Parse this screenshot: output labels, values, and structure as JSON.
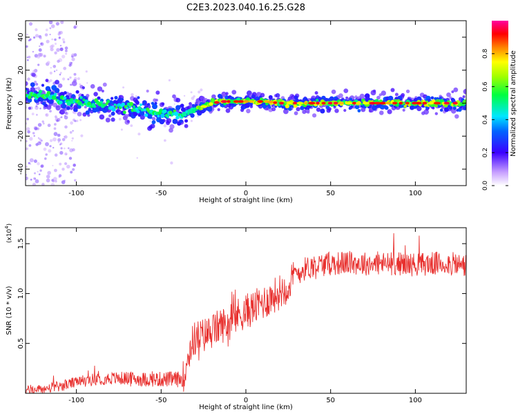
{
  "title": "C2E3.2023.040.16.25.G28",
  "chart_data": [
    {
      "type": "heatmap",
      "xlabel": "Height of straight line (km)",
      "ylabel": "Frequency (Hz)",
      "xlim": [
        -130,
        130
      ],
      "ylim": [
        -50,
        50
      ],
      "xticks": [
        -100,
        -50,
        0,
        50,
        100
      ],
      "yticks": [
        -40,
        -20,
        0,
        20,
        40
      ],
      "colorbar": {
        "label": "Normalized spectral amplitude",
        "ticks": [
          0.0,
          0.2,
          0.4,
          0.6,
          0.8
        ],
        "tick_labels": [
          "0.0",
          "0.2",
          "0.4",
          "0.6",
          "0.8"
        ],
        "range": [
          0,
          1
        ],
        "colormap": "rainbow (white-violet-blue-cyan-green-yellow-red-magenta)"
      },
      "ridge": {
        "description": "dominant frequency vs height",
        "x": [
          -130,
          -120,
          -110,
          -100,
          -90,
          -80,
          -70,
          -60,
          -50,
          -45,
          -40,
          -35,
          -30,
          -25,
          -20,
          -15,
          -10,
          -5,
          0,
          10,
          20,
          30,
          40,
          50,
          60,
          70,
          80,
          90,
          100,
          110,
          120,
          130
        ],
        "y": [
          6,
          5,
          3,
          2,
          0,
          -2,
          -3,
          -4,
          -6,
          -7,
          -8,
          -7,
          -4,
          -2,
          0,
          1,
          1,
          1,
          1,
          1,
          0,
          0,
          0,
          0,
          0,
          0,
          0,
          0,
          0,
          0,
          0,
          0
        ]
      }
    },
    {
      "type": "line",
      "xlabel": "Height of straight line (km)",
      "ylabel": "SNR (10 * v/v)",
      "y_multiplier": "(x10^4)",
      "xlim": [
        -130,
        130
      ],
      "ylim": [
        0,
        16600
      ],
      "xticks": [
        -100,
        -50,
        0,
        50,
        100
      ],
      "yticks": [
        5000,
        10000,
        15000
      ],
      "ytick_labels": [
        "0.5",
        "1.0",
        "1.5"
      ],
      "series": [
        {
          "color": "#e8302e",
          "x": [
            -130,
            -120,
            -110,
            -100,
            -90,
            -80,
            -70,
            -60,
            -50,
            -40,
            -37,
            -35,
            -32,
            -30,
            -25,
            -20,
            -15,
            -10,
            -5,
            0,
            5,
            10,
            15,
            20,
            25,
            30,
            35,
            40,
            50,
            60,
            70,
            80,
            90,
            100,
            110,
            120,
            130
          ],
          "y": [
            300,
            400,
            700,
            1100,
            1400,
            1500,
            1500,
            1400,
            1400,
            1400,
            1500,
            3000,
            5000,
            5500,
            5800,
            6200,
            6800,
            7000,
            7800,
            8200,
            8600,
            9100,
            9600,
            10200,
            10800,
            12000,
            12500,
            12800,
            13000,
            13100,
            13000,
            13000,
            13000,
            12900,
            13000,
            13000,
            12800
          ]
        }
      ]
    }
  ]
}
